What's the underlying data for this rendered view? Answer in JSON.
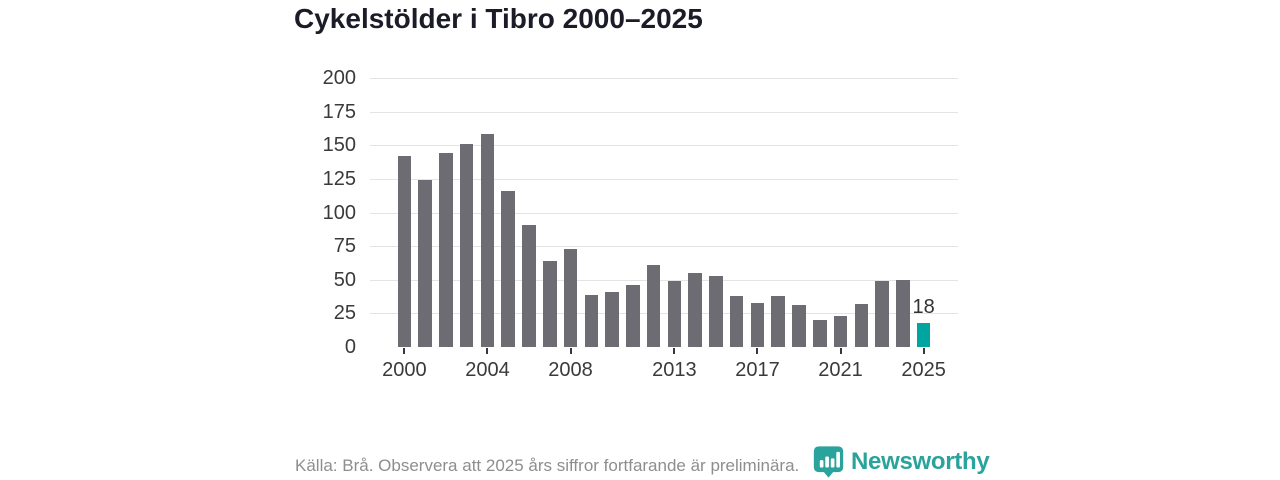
{
  "title": "Cykelstölder i Tibro 2000–2025",
  "footer": {
    "source": "Källa: Brå. Observera att 2025 års siffror fortfarande är preliminära.",
    "brand": "Newsworthy"
  },
  "colors": {
    "bar": "#6c6c72",
    "highlight": "#00a5a0",
    "brand": "#29a39b",
    "grid": "#e4e4e4",
    "axis": "#37373c",
    "tick_text": "#3a3a3a",
    "value_label": "#333333",
    "muted_text": "#8e8e8e",
    "title_text": "#1c1c28"
  },
  "chart_data": {
    "type": "bar",
    "title": "Cykelstölder i Tibro 2000–2025",
    "x": [
      2000,
      2001,
      2002,
      2003,
      2004,
      2005,
      2006,
      2007,
      2008,
      2009,
      2010,
      2011,
      2012,
      2013,
      2014,
      2015,
      2016,
      2017,
      2018,
      2019,
      2020,
      2021,
      2022,
      2023,
      2024,
      2025
    ],
    "values": [
      142,
      124,
      144,
      151,
      158,
      116,
      91,
      64,
      73,
      39,
      41,
      46,
      61,
      49,
      55,
      53,
      38,
      33,
      38,
      31,
      20,
      23,
      32,
      49,
      50,
      18
    ],
    "highlight_year": 2025,
    "highlight_value_label": "18",
    "x_ticks": [
      2000,
      2004,
      2008,
      2013,
      2017,
      2021,
      2025
    ],
    "y_ticks": [
      0,
      25,
      50,
      75,
      100,
      125,
      150,
      175,
      200
    ],
    "ylim": [
      0,
      200
    ],
    "xlabel": "",
    "ylabel": "",
    "grid": "horizontal",
    "legend": "none"
  }
}
